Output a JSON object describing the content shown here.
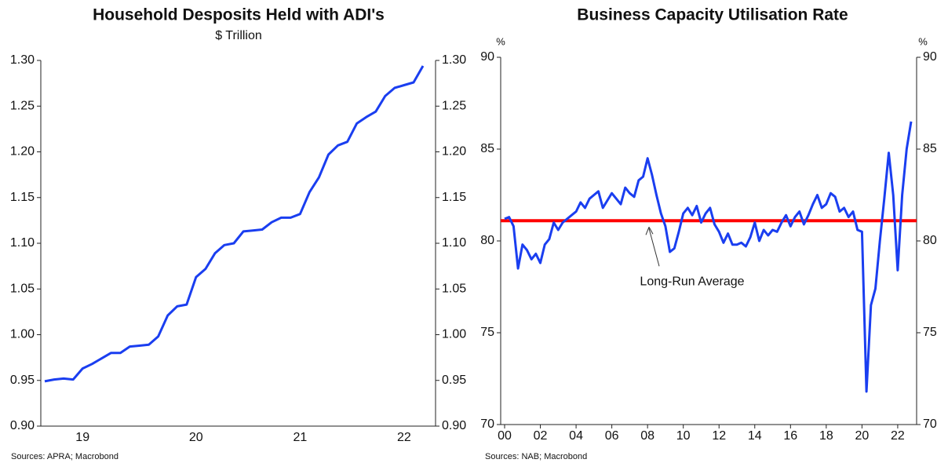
{
  "chart_data": [
    {
      "type": "line",
      "title": "Household Desposits Held with ADI's",
      "subtitle": "$ Trillion",
      "categories": [
        null,
        null,
        null,
        null,
        "19",
        null,
        null,
        null,
        null,
        null,
        null,
        null,
        null,
        null,
        null,
        null,
        "20",
        null,
        null,
        null,
        null,
        null,
        null,
        null,
        null,
        null,
        null,
        "21",
        null,
        null,
        null,
        null,
        null,
        null,
        null,
        null,
        null,
        null,
        "22",
        null,
        null
      ],
      "series": [
        {
          "name": "Household deposits",
          "color": "#1a3ef0",
          "values": [
            0.949,
            0.951,
            0.952,
            0.951,
            0.963,
            0.968,
            0.974,
            0.98,
            0.98,
            0.987,
            0.988,
            0.989,
            0.998,
            1.021,
            1.031,
            1.033,
            1.063,
            1.072,
            1.089,
            1.098,
            1.1,
            1.113,
            1.114,
            1.115,
            1.123,
            1.128,
            1.128,
            1.132,
            1.156,
            1.172,
            1.197,
            1.207,
            1.211,
            1.231,
            1.238,
            1.244,
            1.261,
            1.27,
            1.273,
            1.276,
            1.294
          ]
        }
      ],
      "ylim": [
        0.9,
        1.3
      ],
      "yticks": [
        {
          "value": 0.9,
          "label": "0.90"
        },
        0.95,
        {
          "value": 1.0,
          "label": "1.00"
        },
        1.05,
        {
          "value": 1.1,
          "label": "1.10"
        },
        1.15,
        {
          "value": 1.2,
          "label": "1.20"
        },
        1.25,
        {
          "value": 1.3,
          "label": "1.30"
        }
      ],
      "source": "Sources: APRA; Macrobond"
    },
    {
      "type": "line",
      "title": "Business Capacity Utilisation Rate",
      "y_label": "%",
      "y2_label": "%",
      "categories": [
        "00",
        null,
        null,
        null,
        null,
        null,
        null,
        null,
        "02",
        null,
        null,
        null,
        null,
        null,
        null,
        null,
        "04",
        null,
        null,
        null,
        null,
        null,
        null,
        null,
        "06",
        null,
        null,
        null,
        null,
        null,
        null,
        null,
        "08",
        null,
        null,
        null,
        null,
        null,
        null,
        null,
        "10",
        null,
        null,
        null,
        null,
        null,
        null,
        null,
        "12",
        null,
        null,
        null,
        null,
        null,
        null,
        null,
        "14",
        null,
        null,
        null,
        null,
        null,
        null,
        null,
        "16",
        null,
        null,
        null,
        null,
        null,
        null,
        null,
        "18",
        null,
        null,
        null,
        null,
        null,
        null,
        null,
        "20",
        null,
        null,
        null,
        null,
        null,
        null,
        null,
        "22",
        null,
        null,
        null
      ],
      "series": [
        {
          "name": "Capacity utilisation",
          "color": "#1a3ef0",
          "values": [
            81.2,
            81.3,
            80.8,
            78.5,
            79.8,
            79.5,
            79.0,
            79.3,
            78.8,
            79.8,
            80.1,
            81.0,
            80.6,
            81.0,
            81.2,
            81.4,
            81.6,
            82.1,
            81.8,
            82.3,
            82.5,
            82.7,
            81.8,
            82.2,
            82.6,
            82.3,
            82.0,
            82.9,
            82.6,
            82.4,
            83.3,
            83.5,
            84.5,
            83.6,
            82.5,
            81.5,
            80.8,
            79.4,
            79.6,
            80.5,
            81.5,
            81.8,
            81.4,
            81.9,
            81.0,
            81.5,
            81.8,
            80.9,
            80.5,
            79.9,
            80.4,
            79.8,
            79.8,
            79.9,
            79.7,
            80.2,
            81.0,
            80.0,
            80.6,
            80.3,
            80.6,
            80.5,
            81.0,
            81.4,
            80.8,
            81.3,
            81.6,
            80.9,
            81.4,
            82.0,
            82.5,
            81.8,
            82.0,
            82.6,
            82.4,
            81.6,
            81.8,
            81.3,
            81.6,
            80.6,
            80.5,
            71.8,
            76.5,
            77.4,
            80.0,
            82.3,
            84.8,
            82.5,
            78.4,
            82.5,
            85.0,
            86.5
          ]
        }
      ],
      "reference_line": {
        "value": 81.1,
        "color": "#ff0000"
      },
      "annotation": "Long-Run Average",
      "ylim": [
        70,
        90
      ],
      "yticks": [
        70,
        75,
        80,
        85,
        90
      ],
      "source": "Sources: NAB; Macrobond"
    }
  ]
}
